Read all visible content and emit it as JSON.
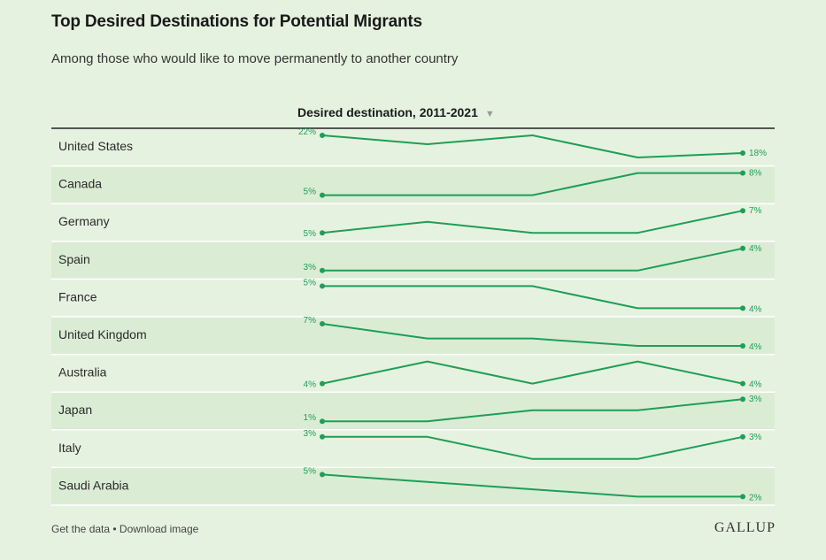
{
  "header": {
    "title": "Top Desired Destinations for Potential Migrants",
    "subtitle": "Among those who would like to move permanently to another country"
  },
  "table_header": {
    "label": "Desired destination, 2011-2021",
    "sort_icon": "triangle-down-icon"
  },
  "footer": {
    "get_data": "Get the data",
    "separator": " • ",
    "download": "Download image",
    "logo": "GALLUP"
  },
  "colors": {
    "line": "#1f9e57",
    "label": "#1f9e57",
    "row_alt": "#dbecd5",
    "divider": "#ffffff",
    "header_rule": "#222222"
  },
  "chart_data": {
    "type": "line",
    "layout": "small-multiples",
    "x": [
      2011,
      2013.5,
      2016,
      2018.5,
      2021
    ],
    "series": [
      {
        "name": "United States",
        "values": [
          22,
          20,
          22,
          17,
          18
        ],
        "start_label": "22%",
        "end_label": "18%"
      },
      {
        "name": "Canada",
        "values": [
          5,
          5,
          5,
          8,
          8
        ],
        "start_label": "5%",
        "end_label": "8%"
      },
      {
        "name": "Germany",
        "values": [
          5,
          6,
          5,
          5,
          7
        ],
        "start_label": "5%",
        "end_label": "7%"
      },
      {
        "name": "Spain",
        "values": [
          3,
          3,
          3,
          3,
          4
        ],
        "start_label": "3%",
        "end_label": "4%"
      },
      {
        "name": "France",
        "values": [
          5,
          5,
          5,
          4,
          4
        ],
        "start_label": "5%",
        "end_label": "4%"
      },
      {
        "name": "United Kingdom",
        "values": [
          7,
          5,
          5,
          4,
          4
        ],
        "start_label": "7%",
        "end_label": "4%"
      },
      {
        "name": "Australia",
        "values": [
          4,
          5,
          4,
          5,
          4
        ],
        "start_label": "4%",
        "end_label": "4%"
      },
      {
        "name": "Japan",
        "values": [
          1,
          1,
          2,
          2,
          3
        ],
        "start_label": "1%",
        "end_label": "3%"
      },
      {
        "name": "Italy",
        "values": [
          3,
          3,
          2,
          2,
          3
        ],
        "start_label": "3%",
        "end_label": "3%"
      },
      {
        "name": "Saudi Arabia",
        "values": [
          5,
          4,
          3,
          2,
          2
        ],
        "start_label": "5%",
        "end_label": "2%"
      }
    ]
  }
}
